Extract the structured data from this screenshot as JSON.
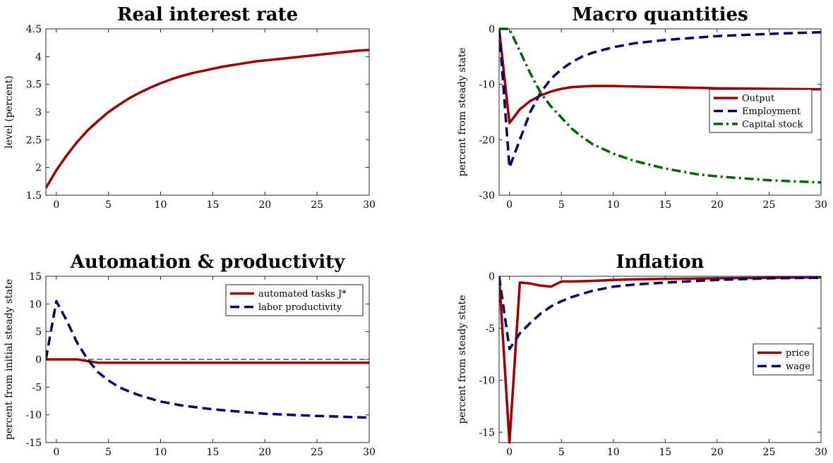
{
  "figure": {
    "background": "#ffffff"
  },
  "chart_data": [
    {
      "type": "line",
      "title": "Real interest rate",
      "xlabel": "",
      "ylabel": "level (percent)",
      "xlim": [
        -1,
        30
      ],
      "ylim": [
        1.5,
        4.5
      ],
      "xticks": [
        0,
        5,
        10,
        15,
        20,
        25,
        30
      ],
      "yticks": [
        1.5,
        2,
        2.5,
        3,
        3.5,
        4,
        4.5
      ],
      "xtick_labels": [
        "0",
        "5",
        "10",
        "15",
        "20",
        "25",
        "30"
      ],
      "ytick_labels": [
        "1.5",
        "2",
        "2.5",
        "3",
        "3.5",
        "4",
        "4.5"
      ],
      "zero_line": false,
      "legend": null,
      "series": [
        {
          "color": "#990000",
          "dash": "solid",
          "x": [
            -1,
            0,
            1,
            2,
            3,
            4,
            5,
            6,
            7,
            8,
            9,
            10,
            11,
            12,
            13,
            14,
            15,
            16,
            17,
            18,
            19,
            20,
            21,
            22,
            23,
            24,
            25,
            26,
            27,
            28,
            29,
            30
          ],
          "y": [
            1.63,
            1.95,
            2.22,
            2.46,
            2.67,
            2.84,
            3.0,
            3.13,
            3.25,
            3.35,
            3.44,
            3.52,
            3.59,
            3.65,
            3.7,
            3.74,
            3.78,
            3.82,
            3.85,
            3.88,
            3.91,
            3.93,
            3.95,
            3.97,
            3.99,
            4.01,
            4.03,
            4.05,
            4.07,
            4.09,
            4.11,
            4.12
          ]
        }
      ]
    },
    {
      "type": "line",
      "title": "Macro quantities",
      "xlabel": "",
      "ylabel": "percent from steady state",
      "xlim": [
        -1,
        30
      ],
      "ylim": [
        -30,
        0
      ],
      "xticks": [
        0,
        5,
        10,
        15,
        20,
        25,
        30
      ],
      "yticks": [
        -30,
        -20,
        -10,
        0
      ],
      "xtick_labels": [
        "0",
        "5",
        "10",
        "15",
        "20",
        "25",
        "30"
      ],
      "ytick_labels": [
        "-30",
        "-20",
        "-10",
        "0"
      ],
      "zero_line": true,
      "legend": {
        "position": "right",
        "entries": [
          "Output",
          "Employment",
          "Capital stock"
        ]
      },
      "series": [
        {
          "name": "Output",
          "color": "#990000",
          "dash": "solid",
          "x": [
            -1,
            0,
            1,
            2,
            3,
            4,
            5,
            6,
            7,
            8,
            9,
            10,
            12,
            15,
            20,
            25,
            30
          ],
          "y": [
            0,
            -17,
            -14.5,
            -13,
            -12,
            -11.3,
            -10.8,
            -10.5,
            -10.4,
            -10.3,
            -10.3,
            -10.3,
            -10.4,
            -10.5,
            -10.7,
            -10.8,
            -10.9
          ]
        },
        {
          "name": "Employment",
          "color": "#00006b",
          "dash": "dashed",
          "x": [
            -1,
            0,
            1,
            2,
            3,
            4,
            5,
            6,
            7,
            8,
            10,
            12,
            15,
            20,
            25,
            30
          ],
          "y": [
            0,
            -25,
            -20,
            -15,
            -11.5,
            -9,
            -7.3,
            -6,
            -5,
            -4.3,
            -3.3,
            -2.6,
            -2,
            -1.3,
            -0.9,
            -0.6
          ]
        },
        {
          "name": "Capital stock",
          "color": "#006400",
          "dash": "dashdot",
          "x": [
            -1,
            0,
            1,
            2,
            3,
            4,
            5,
            6,
            7,
            8,
            10,
            12,
            15,
            18,
            20,
            25,
            30
          ],
          "y": [
            0,
            0,
            -4,
            -8,
            -11.5,
            -14,
            -16,
            -18,
            -19.5,
            -20.8,
            -22.5,
            -23.8,
            -25.2,
            -26.2,
            -26.6,
            -27.3,
            -27.7
          ]
        }
      ]
    },
    {
      "type": "line",
      "title": "Automation & productivity",
      "xlabel": "",
      "ylabel": "percent from initial steady state",
      "xlim": [
        -1,
        30
      ],
      "ylim": [
        -15,
        15
      ],
      "xticks": [
        0,
        5,
        10,
        15,
        20,
        25,
        30
      ],
      "yticks": [
        -15,
        -10,
        -5,
        0,
        5,
        10,
        15
      ],
      "xtick_labels": [
        "0",
        "5",
        "10",
        "15",
        "20",
        "25",
        "30"
      ],
      "ytick_labels": [
        "-15",
        "-10",
        "-5",
        "0",
        "5",
        "10",
        "15"
      ],
      "zero_line": true,
      "legend": {
        "position": "top-right",
        "entries": [
          "automated tasks J*",
          "labor productivity"
        ]
      },
      "series": [
        {
          "name": "automated tasks J*",
          "color": "#990000",
          "dash": "solid",
          "x": [
            -1,
            0,
            1,
            2,
            3,
            4,
            5,
            10,
            15,
            20,
            25,
            30
          ],
          "y": [
            0,
            0,
            0,
            0,
            -0.3,
            -0.6,
            -0.6,
            -0.6,
            -0.6,
            -0.6,
            -0.6,
            -0.6
          ]
        },
        {
          "name": "labor productivity",
          "color": "#00006b",
          "dash": "dashed",
          "x": [
            -1,
            0,
            1,
            2,
            3,
            4,
            5,
            6,
            7,
            8,
            10,
            12,
            15,
            18,
            20,
            25,
            30
          ],
          "y": [
            0,
            10.5,
            7,
            3,
            0,
            -2.3,
            -3.8,
            -5,
            -5.8,
            -6.5,
            -7.6,
            -8.3,
            -9,
            -9.5,
            -9.8,
            -10.2,
            -10.5
          ]
        }
      ]
    },
    {
      "type": "line",
      "title": "Inflation",
      "xlabel": "",
      "ylabel": "percent from steady state",
      "xlim": [
        -1,
        30
      ],
      "ylim": [
        -16,
        0
      ],
      "xticks": [
        0,
        5,
        10,
        15,
        20,
        25,
        30
      ],
      "yticks": [
        -15,
        -10,
        -5,
        0
      ],
      "xtick_labels": [
        "0",
        "5",
        "10",
        "15",
        "20",
        "25",
        "30"
      ],
      "ytick_labels": [
        "-15",
        "-10",
        "-5",
        "0"
      ],
      "zero_line": true,
      "legend": {
        "position": "right",
        "entries": [
          "price",
          "wage"
        ]
      },
      "series": [
        {
          "name": "price",
          "color": "#990000",
          "dash": "solid",
          "x": [
            -1,
            0,
            1,
            2,
            3,
            4,
            5,
            6,
            8,
            10,
            12,
            15,
            20,
            25,
            30
          ],
          "y": [
            0,
            -16,
            -0.6,
            -0.7,
            -0.9,
            -1.0,
            -0.5,
            -0.5,
            -0.45,
            -0.35,
            -0.3,
            -0.25,
            -0.2,
            -0.15,
            -0.1
          ]
        },
        {
          "name": "wage",
          "color": "#00006b",
          "dash": "dashed",
          "x": [
            -1,
            0,
            1,
            2,
            3,
            4,
            5,
            6,
            8,
            10,
            12,
            15,
            20,
            25,
            30
          ],
          "y": [
            0,
            -7,
            -5.5,
            -4.5,
            -3.6,
            -2.9,
            -2.4,
            -2.0,
            -1.4,
            -1.0,
            -0.8,
            -0.6,
            -0.35,
            -0.2,
            -0.15
          ]
        }
      ]
    }
  ]
}
